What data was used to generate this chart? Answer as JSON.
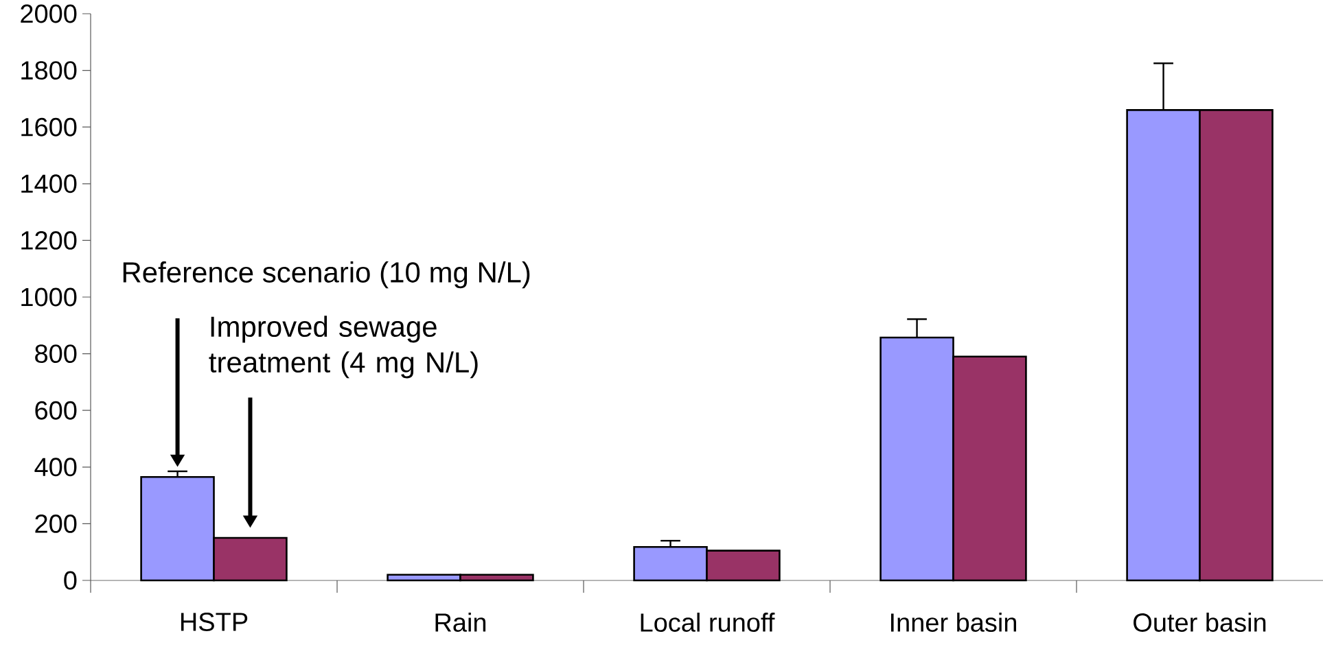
{
  "chart_data": {
    "type": "bar",
    "categories": [
      "HSTP",
      "Rain",
      "Local runoff",
      "Inner basin",
      "Outer basin"
    ],
    "ylim": [
      0,
      2000
    ],
    "yticks": [
      0,
      200,
      400,
      600,
      800,
      1000,
      1200,
      1400,
      1600,
      1800,
      2000
    ],
    "grid": false,
    "legend": false,
    "annotations": [
      "Reference scenario (10 mg N/L)",
      "Improved sewage treatment (4 mg N/L)"
    ],
    "series": [
      {
        "color": "#9999ff",
        "values": [
          365,
          20,
          118,
          857,
          1660
        ],
        "errors": [
          [
            365,
            385
          ],
          null,
          [
            118,
            140
          ],
          [
            857,
            922
          ],
          [
            1660,
            1825
          ]
        ]
      },
      {
        "color": "#993366",
        "values": [
          150,
          20,
          105,
          790,
          1660
        ]
      }
    ]
  }
}
